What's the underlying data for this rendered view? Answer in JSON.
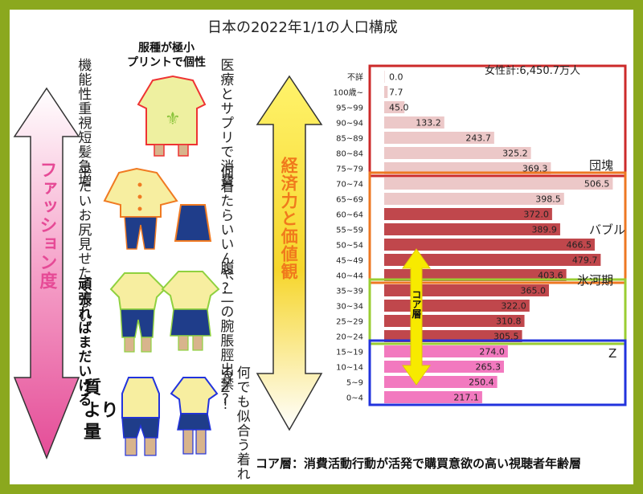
{
  "title": "日本の2022年1/1の人口構成",
  "female_total": "女性計:6,450.7万人",
  "chart_data": {
    "type": "bar",
    "orientation": "horizontal",
    "title": "日本の2022年1/1の人口構成",
    "categories": [
      "不詳",
      "100歳~",
      "95~99",
      "90~94",
      "85~89",
      "80~84",
      "75~79",
      "70~74",
      "65~69",
      "60~64",
      "55~59",
      "50~54",
      "45~49",
      "40~44",
      "35~39",
      "30~34",
      "25~29",
      "20~24",
      "15~19",
      "10~14",
      "5~9",
      "0~4"
    ],
    "values": [
      0.0,
      7.7,
      45.0,
      133.2,
      243.7,
      325.2,
      369.3,
      506.5,
      398.5,
      372.0,
      389.9,
      466.5,
      479.7,
      403.6,
      365.0,
      322.0,
      310.8,
      305.5,
      274.0,
      265.3,
      250.4,
      217.1
    ],
    "value_labels": [
      "0.0",
      "7.7",
      "45.0",
      "133.2",
      "243.7",
      "325.2",
      "369.3",
      "506.5",
      "398.5",
      "372.0",
      "389.9",
      "466.5",
      "479.7",
      "403.6",
      "365.0",
      "322.0",
      "310.8",
      "305.5",
      "274.0",
      "265.3",
      "250.4",
      "217.1"
    ],
    "xlim": [
      0,
      520
    ],
    "group_colors": {
      "elderly": "#ecc8c8",
      "core": "#c0474c",
      "young": "#f279bf"
    },
    "groups": [
      {
        "label": "団塊",
        "color": "#cc2a2a"
      },
      {
        "label": "バブル",
        "color": "#ee7722"
      },
      {
        "label": "氷河期",
        "color": "#9acd32"
      },
      {
        "label": "Z",
        "color": "#2233dd"
      }
    ],
    "core_label": "コア層"
  },
  "left_arrow_label": "ファッション度",
  "middle_arrow_label": "経済力と価値観",
  "header_top": "服種が極小\nプリントで個性",
  "columns": {
    "row1_left": [
      "機能性重視",
      "短髪急増"
    ],
    "row1_right": [
      "医療と",
      "サプリで消費"
    ],
    "row2_left": [
      "平たいお尻",
      "見せたくない"
    ],
    "row2_right": [
      "何着たら",
      "いいんや?"
    ],
    "row3_left": [
      "頑張れば",
      "まだいける"
    ],
    "row3_right": [
      "腹、二の腕",
      "脹脛出禁?"
    ],
    "row4_left": [
      "質",
      "より",
      "量"
    ],
    "row4_right": [
      "何でも似合う",
      "着れるZ!"
    ]
  },
  "footer": "コア層：消費活動行動が活発で購買意欲の高い視聴者年齢層"
}
